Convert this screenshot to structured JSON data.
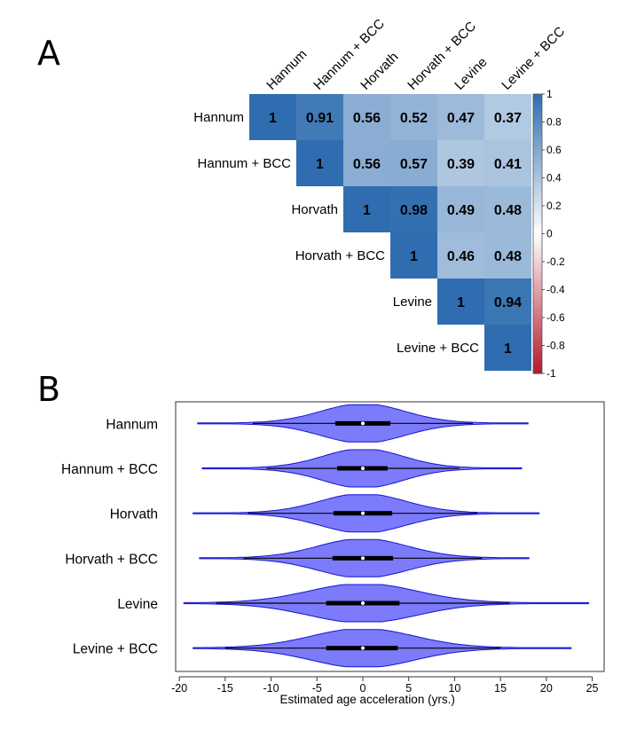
{
  "panel_labels": {
    "a": "A",
    "b": "B"
  },
  "colors": {
    "pos": "#2f6db0",
    "neg": "#b2182b",
    "mid": "#ffffff",
    "violin_fill": "#7b7bfb",
    "violin_stroke": "#1515d0",
    "box": "#000000",
    "median": "#ffffff"
  },
  "chart_data": [
    {
      "type": "heatmap",
      "title": "",
      "labels": [
        "Hannum",
        "Hannum + BCC",
        "Horvath",
        "Horvath + BCC",
        "Levine",
        "Levine + BCC"
      ],
      "matrix": [
        [
          1,
          0.91,
          0.56,
          0.52,
          0.47,
          0.37
        ],
        [
          null,
          1,
          0.56,
          0.57,
          0.39,
          0.41
        ],
        [
          null,
          null,
          1,
          0.98,
          0.49,
          0.48
        ],
        [
          null,
          null,
          null,
          1,
          0.46,
          0.48
        ],
        [
          null,
          null,
          null,
          null,
          1,
          0.94
        ],
        [
          null,
          null,
          null,
          null,
          null,
          1
        ]
      ],
      "cell_text": [
        [
          "1",
          "0.91",
          "0.56",
          "0.52",
          "0.47",
          "0.37"
        ],
        [
          "",
          "1",
          "0.56",
          "0.57",
          "0.39",
          "0.41"
        ],
        [
          "",
          "",
          "1",
          "0.98",
          "0.49",
          "0.48"
        ],
        [
          "",
          "",
          "",
          "1",
          "0.46",
          "0.48"
        ],
        [
          "",
          "",
          "",
          "",
          "1",
          "0.94"
        ],
        [
          "",
          "",
          "",
          "",
          "",
          "1"
        ]
      ],
      "upper_triangle_only": true,
      "colorbar": {
        "range": [
          -1,
          1
        ],
        "ticks": [
          1,
          0.8,
          0.6,
          0.4,
          0.2,
          0,
          -0.2,
          -0.4,
          -0.6,
          -0.8,
          -1
        ],
        "tick_labels": [
          "1",
          "0.8",
          "0.6",
          "0.4",
          "0.2",
          "0",
          "-0.2",
          "-0.4",
          "-0.6",
          "-0.8",
          "-1"
        ],
        "position": "right"
      }
    },
    {
      "type": "violin",
      "title": "",
      "xlabel": "Estimated age acceleration (yrs.)",
      "ylabel": "",
      "xlim": [
        -20,
        25
      ],
      "xticks": [
        -20,
        -15,
        -10,
        -5,
        0,
        5,
        10,
        15,
        20,
        25
      ],
      "xtick_labels": [
        "-20",
        "-15",
        "-10",
        "-5",
        "0",
        "5",
        "10",
        "15",
        "20",
        "25"
      ],
      "grid": false,
      "series": [
        {
          "name": "Hannum",
          "min": -18,
          "max": 18,
          "q1": -3,
          "median": 0,
          "q3": 3,
          "whisker_lo": -12,
          "whisker_hi": 12,
          "spread": 4.5
        },
        {
          "name": "Hannum + BCC",
          "min": -17.5,
          "max": 17.3,
          "q1": -2.8,
          "median": 0,
          "q3": 2.7,
          "whisker_lo": -10.5,
          "whisker_hi": 10.5,
          "spread": 4.3
        },
        {
          "name": "Horvath",
          "min": -18.5,
          "max": 19.2,
          "q1": -3.2,
          "median": 0,
          "q3": 3.2,
          "whisker_lo": -12.5,
          "whisker_hi": 12.5,
          "spread": 4.6
        },
        {
          "name": "Horvath + BCC",
          "min": -17.8,
          "max": 18.1,
          "q1": -3.3,
          "median": 0,
          "q3": 3.3,
          "whisker_lo": -13,
          "whisker_hi": 13,
          "spread": 4.8
        },
        {
          "name": "Levine",
          "min": -19.5,
          "max": 24.6,
          "q1": -4,
          "median": 0,
          "q3": 4,
          "whisker_lo": -16,
          "whisker_hi": 16,
          "spread": 5.8
        },
        {
          "name": "Levine + BCC",
          "min": -18.5,
          "max": 22.7,
          "q1": -4,
          "median": 0,
          "q3": 3.8,
          "whisker_lo": -15,
          "whisker_hi": 15,
          "spread": 5.5
        }
      ]
    }
  ]
}
